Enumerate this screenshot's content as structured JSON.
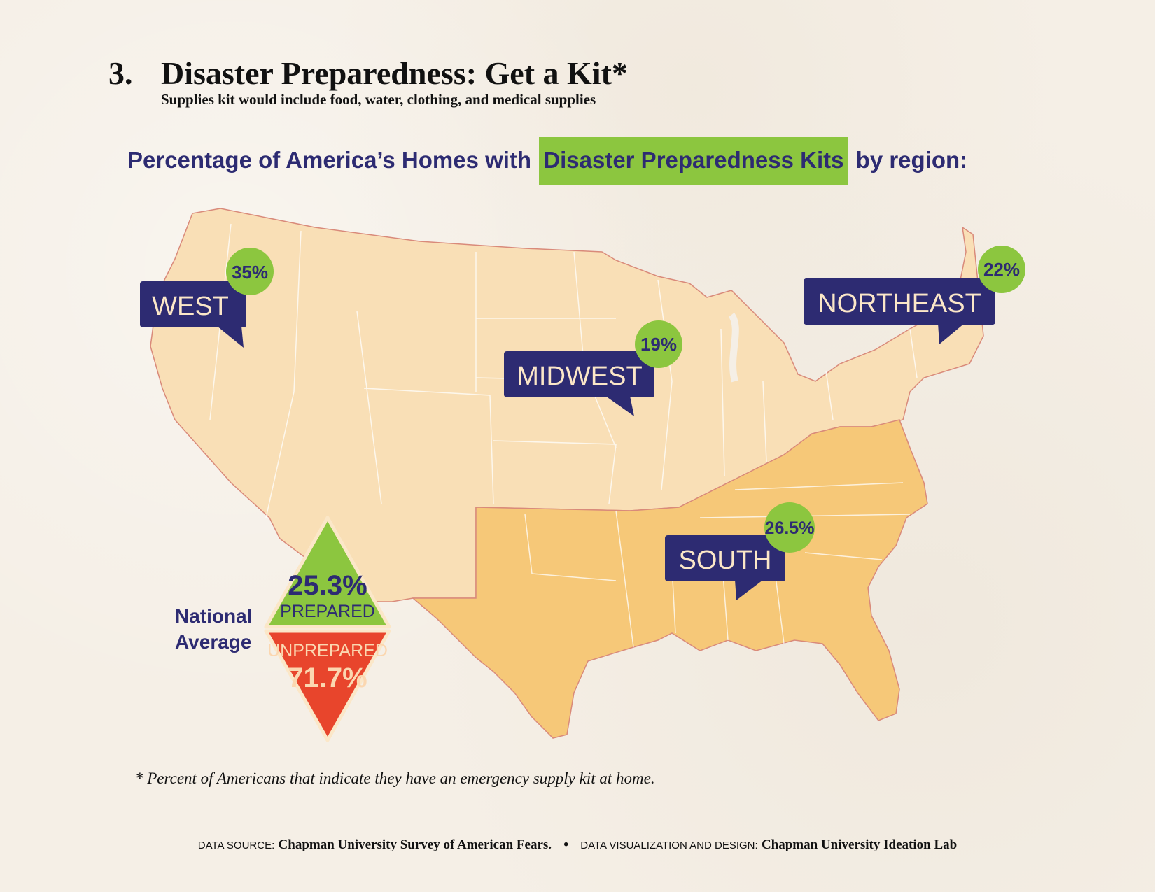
{
  "header": {
    "number": "3.",
    "title": "Disaster Preparedness: Get a Kit*",
    "subtitle": "Supplies kit would include food, water, clothing, and medical supplies"
  },
  "heading": {
    "before": "Percentage of America’s Homes with",
    "highlight": "Disaster Preparedness Kits",
    "after": "by region:"
  },
  "regions": {
    "west": {
      "name": "WEST",
      "value": "35%"
    },
    "midwest": {
      "name": "MIDWEST",
      "value": "19%"
    },
    "northeast": {
      "name": "NORTHEAST",
      "value": "22%"
    },
    "south": {
      "name": "SOUTH",
      "value": "26.5%"
    }
  },
  "national": {
    "label_line1": "National",
    "label_line2": "Average",
    "prepared_value": "25.3%",
    "prepared_label": "PREPARED",
    "unprepared_label": "UNPREPARED",
    "unprepared_value": "71.7%"
  },
  "footnote": "* Percent of Americans that indicate they have an emergency supply kit at home.",
  "credits": {
    "source_label": "DATA SOURCE:",
    "source_value": "Chapman University Survey of American Fears.",
    "design_label": "DATA VISUALIZATION AND DESIGN:",
    "design_value": "Chapman University Ideation Lab"
  },
  "colors": {
    "navy": "#2d2b72",
    "green": "#8cc63f",
    "red": "#e8452c",
    "map_light": "#f9dfb6",
    "map_south": "#f6c878",
    "map_border": "#d98a7a"
  }
}
